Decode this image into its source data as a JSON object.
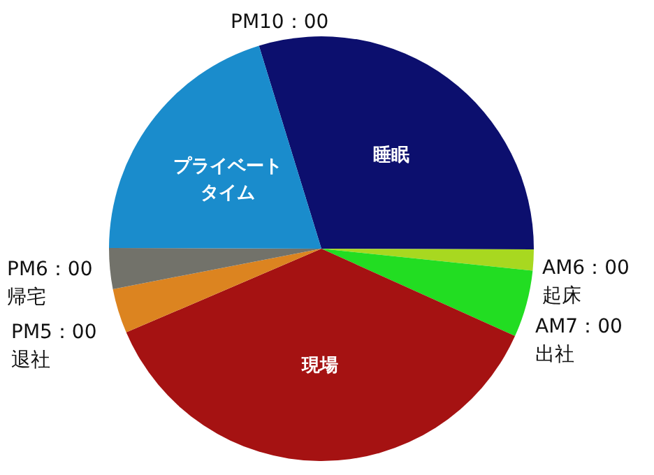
{
  "chart_data": {
    "type": "pie",
    "categories": [
      "睡眠",
      null,
      null,
      "現場",
      null,
      null,
      "プライベートタイム"
    ],
    "values": [
      29.8,
      1.6,
      5.1,
      36.8,
      3.4,
      3.1,
      20.2
    ],
    "colors": [
      "#0c0f6e",
      "#a8d820",
      "#22dd22",
      "#a51212",
      "#dc8420",
      "#72726a",
      "#1a8ccc"
    ],
    "annotations": [
      "PM10：00",
      "AM6：00\n起床",
      "AM7：00\n出社",
      "PM6：00\n帰宅",
      "PM5：00\n退社"
    ]
  }
}
